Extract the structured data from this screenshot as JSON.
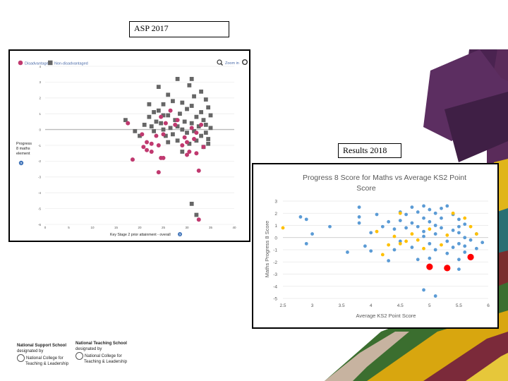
{
  "captions": {
    "asp": "ASP 2017",
    "results": "Results 2018"
  },
  "colors": {
    "disadvantaged": "#c0396f",
    "non_disadvantaged": "#666666",
    "blue": "#5b9bd5",
    "yellow": "#ffc000",
    "red": "#ff0000"
  },
  "asp_panel": {
    "zoom_label": "Zoom in",
    "icons": [
      "zoom-in-icon",
      "menu-icon",
      "help-icon"
    ]
  },
  "logos": {
    "left": {
      "line1": "National Support School",
      "line2": "designated by",
      "line3": "National College for",
      "line4": "Teaching & Leadership"
    },
    "right": {
      "line1": "National Teaching School",
      "line2": "designated by",
      "line3": "National College for",
      "line4": "Teaching & Leadership"
    }
  },
  "chart_data": [
    {
      "id": "asp-2017",
      "type": "scatter",
      "title": "",
      "xlabel": "Key Stage 2 prior attainment - overall",
      "ylabel": "Progress 8 maths element",
      "xlim": [
        0,
        40
      ],
      "ylim": [
        -6,
        4
      ],
      "xticks": [
        0,
        5,
        10,
        15,
        20,
        25,
        30,
        35,
        40
      ],
      "yticks": [
        -6,
        -5,
        -4,
        -3,
        -2,
        -1,
        0,
        1,
        2,
        3,
        4
      ],
      "grid": true,
      "legend": "top-left",
      "series": [
        {
          "name": "Disadvantaged",
          "marker": "circle",
          "points": [
            [
              17.5,
              0.4
            ],
            [
              18.5,
              -1.9
            ],
            [
              20.5,
              -0.3
            ],
            [
              20.8,
              -1.1
            ],
            [
              21.5,
              -1.3
            ],
            [
              22.5,
              -1.4
            ],
            [
              21.5,
              -0.8
            ],
            [
              22.5,
              -0.9
            ],
            [
              23.5,
              -0.4
            ],
            [
              24,
              -1
            ],
            [
              24.5,
              -1.8
            ],
            [
              24,
              -2.7
            ],
            [
              25,
              -1.8
            ],
            [
              25.5,
              0.4
            ],
            [
              24.5,
              0.8
            ],
            [
              26.5,
              1.2
            ],
            [
              25,
              -0.3
            ],
            [
              27.5,
              0.3
            ],
            [
              29.5,
              -0.5
            ],
            [
              29,
              -1
            ],
            [
              30,
              -0.8
            ],
            [
              30.5,
              -1.4
            ],
            [
              31.5,
              -0.6
            ],
            [
              32,
              -1.5
            ],
            [
              32.5,
              -2.6
            ],
            [
              33.5,
              -1.1
            ],
            [
              28,
              0.6
            ],
            [
              31,
              0.1
            ],
            [
              32,
              -0.2
            ],
            [
              33,
              0.3
            ],
            [
              30,
              -1.6
            ],
            [
              32.5,
              -5.7
            ]
          ]
        },
        {
          "name": "Non-disadvantaged",
          "marker": "square",
          "points": [
            [
              17,
              0.6
            ],
            [
              19,
              -0.1
            ],
            [
              20,
              -0.4
            ],
            [
              21,
              0.3
            ],
            [
              22,
              0.8
            ],
            [
              22.5,
              0.2
            ],
            [
              23,
              -0.1
            ],
            [
              23.5,
              0.5
            ],
            [
              24,
              1.2
            ],
            [
              24.5,
              0.4
            ],
            [
              25,
              0
            ],
            [
              25.5,
              -0.4
            ],
            [
              26,
              0.9
            ],
            [
              26.5,
              0.1
            ],
            [
              27,
              -0.3
            ],
            [
              27.5,
              0.6
            ],
            [
              28,
              -0.7
            ],
            [
              28,
              0.2
            ],
            [
              28.5,
              1
            ],
            [
              29,
              0
            ],
            [
              29,
              -1.4
            ],
            [
              29.5,
              0.5
            ],
            [
              30,
              -0.2
            ],
            [
              30,
              1.3
            ],
            [
              30.5,
              -0.9
            ],
            [
              31,
              0.4
            ],
            [
              31,
              1.5
            ],
            [
              31.5,
              -0.1
            ],
            [
              32,
              -0.7
            ],
            [
              32,
              0.8
            ],
            [
              32.5,
              0.2
            ],
            [
              33,
              -0.4
            ],
            [
              33,
              1.1
            ],
            [
              33.5,
              0.6
            ],
            [
              34,
              -0.2
            ],
            [
              34,
              0.3
            ],
            [
              34.5,
              -0.6
            ],
            [
              35,
              0.1
            ],
            [
              35,
              0.9
            ],
            [
              34.5,
              1.4
            ],
            [
              26,
              2.2
            ],
            [
              30.5,
              2.8
            ],
            [
              31.5,
              2.1
            ],
            [
              33,
              2.4
            ],
            [
              34,
              1.9
            ],
            [
              31,
              3.2
            ],
            [
              28,
              3.2
            ],
            [
              24,
              2.7
            ],
            [
              22,
              1.6
            ],
            [
              23,
              1.1
            ],
            [
              25,
              1.6
            ],
            [
              27,
              1.8
            ],
            [
              29,
              1.7
            ],
            [
              26,
              -0.8
            ],
            [
              25,
              0.9
            ],
            [
              33.5,
              -1.1
            ],
            [
              34.5,
              -0.9
            ],
            [
              31,
              -4.7
            ],
            [
              32,
              -5.4
            ]
          ]
        }
      ]
    },
    {
      "id": "results-2018",
      "type": "scatter",
      "title": "Progress 8 Score for Maths vs Average KS2 Point Score",
      "xlabel": "Average KS2 Point Score",
      "ylabel": "Maths Progress 8 Score",
      "xlim": [
        2.5,
        6
      ],
      "ylim": [
        -5,
        3
      ],
      "xticks": [
        2.5,
        3,
        3.5,
        4,
        4.5,
        5,
        5.5,
        6
      ],
      "xticklabels": [
        "2.5",
        "3",
        "3.5",
        "4",
        "4.5",
        "5",
        "5.5",
        "6"
      ],
      "yticks": [
        -5,
        -4,
        -3,
        -2,
        -1,
        0,
        1,
        2,
        3
      ],
      "grid": true,
      "legend": "none",
      "series": [
        {
          "color": "blue",
          "points": [
            [
              2.8,
              1.7
            ],
            [
              2.9,
              1.5
            ],
            [
              2.9,
              -0.5
            ],
            [
              3,
              0.3
            ],
            [
              3.3,
              0.9
            ],
            [
              3.6,
              -1.2
            ],
            [
              3.8,
              2.5
            ],
            [
              3.8,
              1.7
            ],
            [
              3.8,
              1.2
            ],
            [
              3.9,
              -0.7
            ],
            [
              4,
              -1.1
            ],
            [
              4,
              0.4
            ],
            [
              4.1,
              1.9
            ],
            [
              4.2,
              0.9
            ],
            [
              4.3,
              1.3
            ],
            [
              4.3,
              -1.9
            ],
            [
              4.4,
              0.7
            ],
            [
              4.4,
              -1
            ],
            [
              4.5,
              2.1
            ],
            [
              4.5,
              1.4
            ],
            [
              4.5,
              -0.3
            ],
            [
              4.6,
              0.8
            ],
            [
              4.6,
              1.9
            ],
            [
              4.7,
              2.5
            ],
            [
              4.7,
              1.2
            ],
            [
              4.7,
              -0.8
            ],
            [
              4.8,
              2.1
            ],
            [
              4.8,
              0.9
            ],
            [
              4.8,
              -1.8
            ],
            [
              4.9,
              1.6
            ],
            [
              4.9,
              0.5
            ],
            [
              5,
              2.3
            ],
            [
              5,
              1.3
            ],
            [
              5,
              -0.5
            ],
            [
              5,
              -1.7
            ],
            [
              5.1,
              2
            ],
            [
              5.1,
              1
            ],
            [
              5.1,
              0.3
            ],
            [
              5.1,
              -1
            ],
            [
              5.2,
              2.4
            ],
            [
              5.2,
              1.6
            ],
            [
              5.2,
              0.8
            ],
            [
              5.3,
              -0.3
            ],
            [
              5.3,
              -1.3
            ],
            [
              5.4,
              1.9
            ],
            [
              5.4,
              0.6
            ],
            [
              5.4,
              -0.8
            ],
            [
              5.5,
              1.5
            ],
            [
              5.5,
              0.9
            ],
            [
              5.5,
              0.4
            ],
            [
              5.5,
              -0.5
            ],
            [
              5.5,
              -1.8
            ],
            [
              5.5,
              -2.6
            ],
            [
              5.6,
              1.1
            ],
            [
              5.6,
              0
            ],
            [
              5.6,
              -1.2
            ],
            [
              5.7,
              -0.2
            ],
            [
              5.8,
              0.3
            ],
            [
              5.8,
              -0.9
            ],
            [
              5.9,
              -0.4
            ],
            [
              4.9,
              2.6
            ],
            [
              5.3,
              2.6
            ],
            [
              4.9,
              -4.3
            ],
            [
              5.1,
              -4.8
            ],
            [
              4.9,
              0.1
            ],
            [
              5.6,
              -0.7
            ]
          ]
        },
        {
          "color": "yellow",
          "points": [
            [
              2.5,
              0.8
            ],
            [
              4.1,
              0.5
            ],
            [
              4.2,
              -1.4
            ],
            [
              4.3,
              -0.6
            ],
            [
              4.4,
              0.1
            ],
            [
              4.5,
              -0.5
            ],
            [
              4.5,
              2
            ],
            [
              4.6,
              -0.3
            ],
            [
              4.7,
              0.3
            ],
            [
              4.8,
              -0.2
            ],
            [
              4.9,
              -0.9
            ],
            [
              5,
              0.7
            ],
            [
              5.2,
              -0.6
            ],
            [
              5.3,
              0.2
            ],
            [
              5.4,
              2
            ],
            [
              5.6,
              1.6
            ],
            [
              5.7,
              0.9
            ],
            [
              5.8,
              0.3
            ]
          ]
        },
        {
          "color": "red",
          "points": [
            [
              5,
              -2.4
            ],
            [
              5.3,
              -2.5
            ],
            [
              5.7,
              -1.6
            ]
          ]
        }
      ]
    }
  ]
}
